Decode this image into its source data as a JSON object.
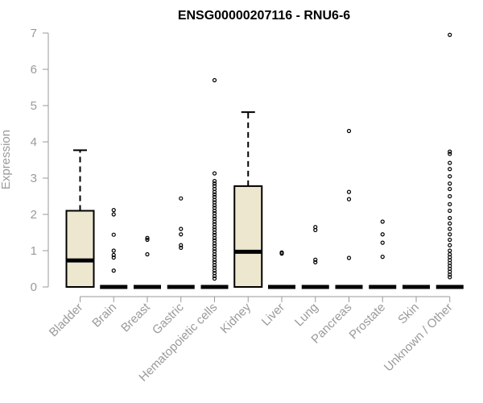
{
  "chart_data": {
    "type": "box",
    "title": "ENSG00000207116 - RNU6-6",
    "xlabel": "",
    "ylabel": "Expression",
    "ylim": [
      0,
      7
    ],
    "yticks": [
      0,
      1,
      2,
      3,
      4,
      5,
      6,
      7
    ],
    "grid": false,
    "legend": "none",
    "box_fill": "#ede7cf",
    "categories": [
      "Bladder",
      "Brain",
      "Breast",
      "Gastric",
      "Hematopoietic cells",
      "Kidney",
      "Liver",
      "Lung",
      "Pancreas",
      "Prostate",
      "Skin",
      "Unknown / Other"
    ],
    "boxes": [
      {
        "category": "Bladder",
        "q1": 0,
        "median": 0.73,
        "q3": 2.1,
        "whisker_low": 0,
        "whisker_high": 3.77,
        "outliers": []
      },
      {
        "category": "Brain",
        "q1": 0,
        "median": 0,
        "q3": 0,
        "whisker_low": 0,
        "whisker_high": 0,
        "outliers": [
          2.12,
          2.0,
          1.44,
          1.0,
          0.88,
          0.81,
          0.45
        ]
      },
      {
        "category": "Breast",
        "q1": 0,
        "median": 0,
        "q3": 0,
        "whisker_low": 0,
        "whisker_high": 0,
        "outliers": [
          1.35,
          1.3,
          0.9
        ]
      },
      {
        "category": "Gastric",
        "q1": 0,
        "median": 0,
        "q3": 0,
        "whisker_low": 0,
        "whisker_high": 0,
        "outliers": [
          2.44,
          1.6,
          1.45,
          1.15,
          1.08
        ]
      },
      {
        "category": "Hematopoietic cells",
        "q1": 0,
        "median": 0,
        "q3": 0,
        "whisker_low": 0,
        "whisker_high": 0,
        "outliers": [
          5.7,
          3.13,
          2.92,
          2.85,
          2.78,
          2.7,
          2.62,
          2.55,
          2.48,
          2.4,
          2.33,
          2.25,
          2.18,
          2.1,
          2.03,
          1.95,
          1.88,
          1.8,
          1.73,
          1.65,
          1.58,
          1.5,
          1.43,
          1.35,
          1.28,
          1.2,
          1.13,
          1.05,
          0.98,
          0.9,
          0.83,
          0.75,
          0.68,
          0.6,
          0.53,
          0.45,
          0.38,
          0.3,
          0.23
        ]
      },
      {
        "category": "Kidney",
        "q1": 0,
        "median": 0.97,
        "q3": 2.78,
        "whisker_low": 0,
        "whisker_high": 4.82,
        "outliers": []
      },
      {
        "category": "Liver",
        "q1": 0,
        "median": 0,
        "q3": 0,
        "whisker_low": 0,
        "whisker_high": 0,
        "outliers": [
          0.95,
          0.92
        ]
      },
      {
        "category": "Lung",
        "q1": 0,
        "median": 0,
        "q3": 0,
        "whisker_low": 0,
        "whisker_high": 0,
        "outliers": [
          1.65,
          1.57,
          0.75,
          0.68
        ]
      },
      {
        "category": "Pancreas",
        "q1": 0,
        "median": 0,
        "q3": 0,
        "whisker_low": 0,
        "whisker_high": 0,
        "outliers": [
          4.3,
          2.62,
          2.42,
          0.8
        ]
      },
      {
        "category": "Prostate",
        "q1": 0,
        "median": 0,
        "q3": 0,
        "whisker_low": 0,
        "whisker_high": 0,
        "outliers": [
          1.8,
          1.45,
          1.22,
          0.83
        ]
      },
      {
        "category": "Skin",
        "q1": 0,
        "median": 0,
        "q3": 0,
        "whisker_low": 0,
        "whisker_high": 0,
        "outliers": []
      },
      {
        "category": "Unknown / Other",
        "q1": 0,
        "median": 0,
        "q3": 0,
        "whisker_low": 0,
        "whisker_high": 0,
        "outliers": [
          6.95,
          3.73,
          3.67,
          3.42,
          3.25,
          3.05,
          2.85,
          2.7,
          2.5,
          2.28,
          2.1,
          1.9,
          1.75,
          1.6,
          1.45,
          1.3,
          1.15,
          1.0,
          0.9,
          0.82,
          0.74,
          0.66,
          0.58,
          0.5,
          0.42,
          0.34,
          0.27
        ]
      }
    ]
  }
}
